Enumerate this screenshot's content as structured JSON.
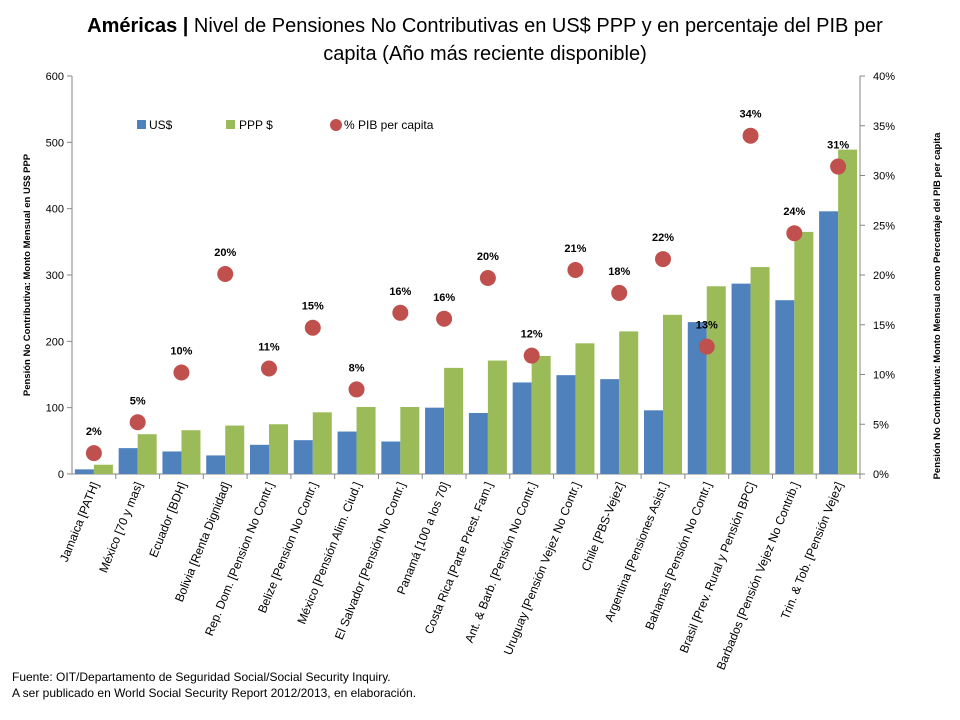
{
  "title": {
    "bold": "Américas |",
    "rest": " Nivel de Pensiones No Contributivas en US$ PPP y en percentaje del PIB per capita (Año más reciente disponible)"
  },
  "source": {
    "line1": "Fuente: OIT/Departamento de Seguridad Social/Social Security Inquiry.",
    "line2": "A ser publicado en World Social Security Report 2012/2013,  en elaboración."
  },
  "colors": {
    "usd": "#4F81BD",
    "ppp": "#9BBB59",
    "pct": "#C0504D"
  },
  "chart_data": {
    "type": "bar",
    "ylabel": "Pensión No Contributiva: Monto Mensual en US$ PPP",
    "y2label": "Pensión No Contributiva: Monto Mensual como Percentaje del PIB per capita",
    "ylim": [
      0,
      600
    ],
    "y2lim": [
      0,
      40
    ],
    "yticks": [
      "0",
      "100",
      "200",
      "300",
      "400",
      "500",
      "600"
    ],
    "y2ticks": [
      "0%",
      "5%",
      "10%",
      "15%",
      "20%",
      "25%",
      "30%",
      "35%",
      "40%"
    ],
    "grid": false,
    "legend_position": "top-left",
    "categories": [
      "Jamaica [PATH]",
      "México [70 y mas]",
      "Ecuador [BDH]",
      "Bolivia [Renta Dignidad]",
      "Rep. Dom. [Pension No Contr.]",
      "Belize [Pension No Contr.]",
      "México [Pensión Alim. Ciud.]",
      "El Salvador [Pensión No Contr.]",
      "Panamá [100 a los 70]",
      "Costa Rica [Parte Prest. Fam.]",
      "Ant. & Barb. [Pensión No Contr.]",
      "Uruguay [Pensión Vejez No Contr.]",
      "Chile [PBS-Vejez]",
      "Argentina [Pensiones Asist.]",
      "Bahamas [Pensión No Contr.]",
      "Brasil [Prev. Rural y Pensión BPC]",
      "Barbados [Pensión Vejez No Contrib.]",
      "Trin. & Tob. [Pensión Vejez]"
    ],
    "series": [
      {
        "name": "US$",
        "kind": "bar",
        "axis": "left",
        "values": [
          7,
          39,
          34,
          28,
          44,
          51,
          64,
          49,
          100,
          92,
          138,
          149,
          143,
          96,
          229,
          287,
          262,
          396
        ]
      },
      {
        "name": "PPP $",
        "kind": "bar",
        "axis": "left",
        "values": [
          14,
          60,
          66,
          73,
          75,
          93,
          101,
          101,
          160,
          171,
          178,
          197,
          215,
          240,
          283,
          312,
          365,
          489
        ]
      },
      {
        "name": "% PIB per capita",
        "kind": "scatter",
        "axis": "right",
        "values": [
          2.1,
          5.2,
          10.2,
          20.1,
          10.6,
          14.7,
          8.5,
          16.2,
          15.6,
          19.7,
          11.9,
          20.5,
          18.2,
          21.6,
          12.8,
          34,
          24.2,
          30.9
        ],
        "labels": [
          "2%",
          "5%",
          "10%",
          "20%",
          "11%",
          "15%",
          "8%",
          "16%",
          "16%",
          "20%",
          "12%",
          "21%",
          "18%",
          "22%",
          "13%",
          "34%",
          "24%",
          "31%"
        ]
      }
    ]
  }
}
